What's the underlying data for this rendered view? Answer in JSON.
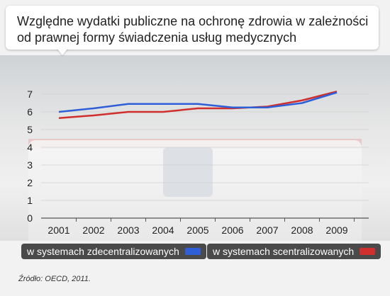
{
  "title": "Względne wydatki publiczne na ochronę zdrowia w zależności od prawnej formy świadczenia usług medycznych",
  "source": "Źródło: OECD, 2011.",
  "chart_data": {
    "type": "line",
    "x": [
      "2001",
      "2002",
      "2003",
      "2004",
      "2005",
      "2006",
      "2007",
      "2008",
      "2009"
    ],
    "ylim": [
      0,
      7
    ],
    "yticks": [
      0,
      1,
      2,
      3,
      4,
      5,
      6,
      7
    ],
    "series": [
      {
        "name": "w systemach zdecentralizowanych",
        "color": "#2f5fd7",
        "values": [
          6.0,
          6.2,
          6.45,
          6.45,
          6.45,
          6.25,
          6.25,
          6.5,
          7.1
        ]
      },
      {
        "name": "w systemach scentralizowanych",
        "color": "#d12e2e",
        "values": [
          5.65,
          5.8,
          6.0,
          6.0,
          6.2,
          6.2,
          6.3,
          6.65,
          7.15
        ]
      }
    ],
    "legend": "bottom"
  }
}
